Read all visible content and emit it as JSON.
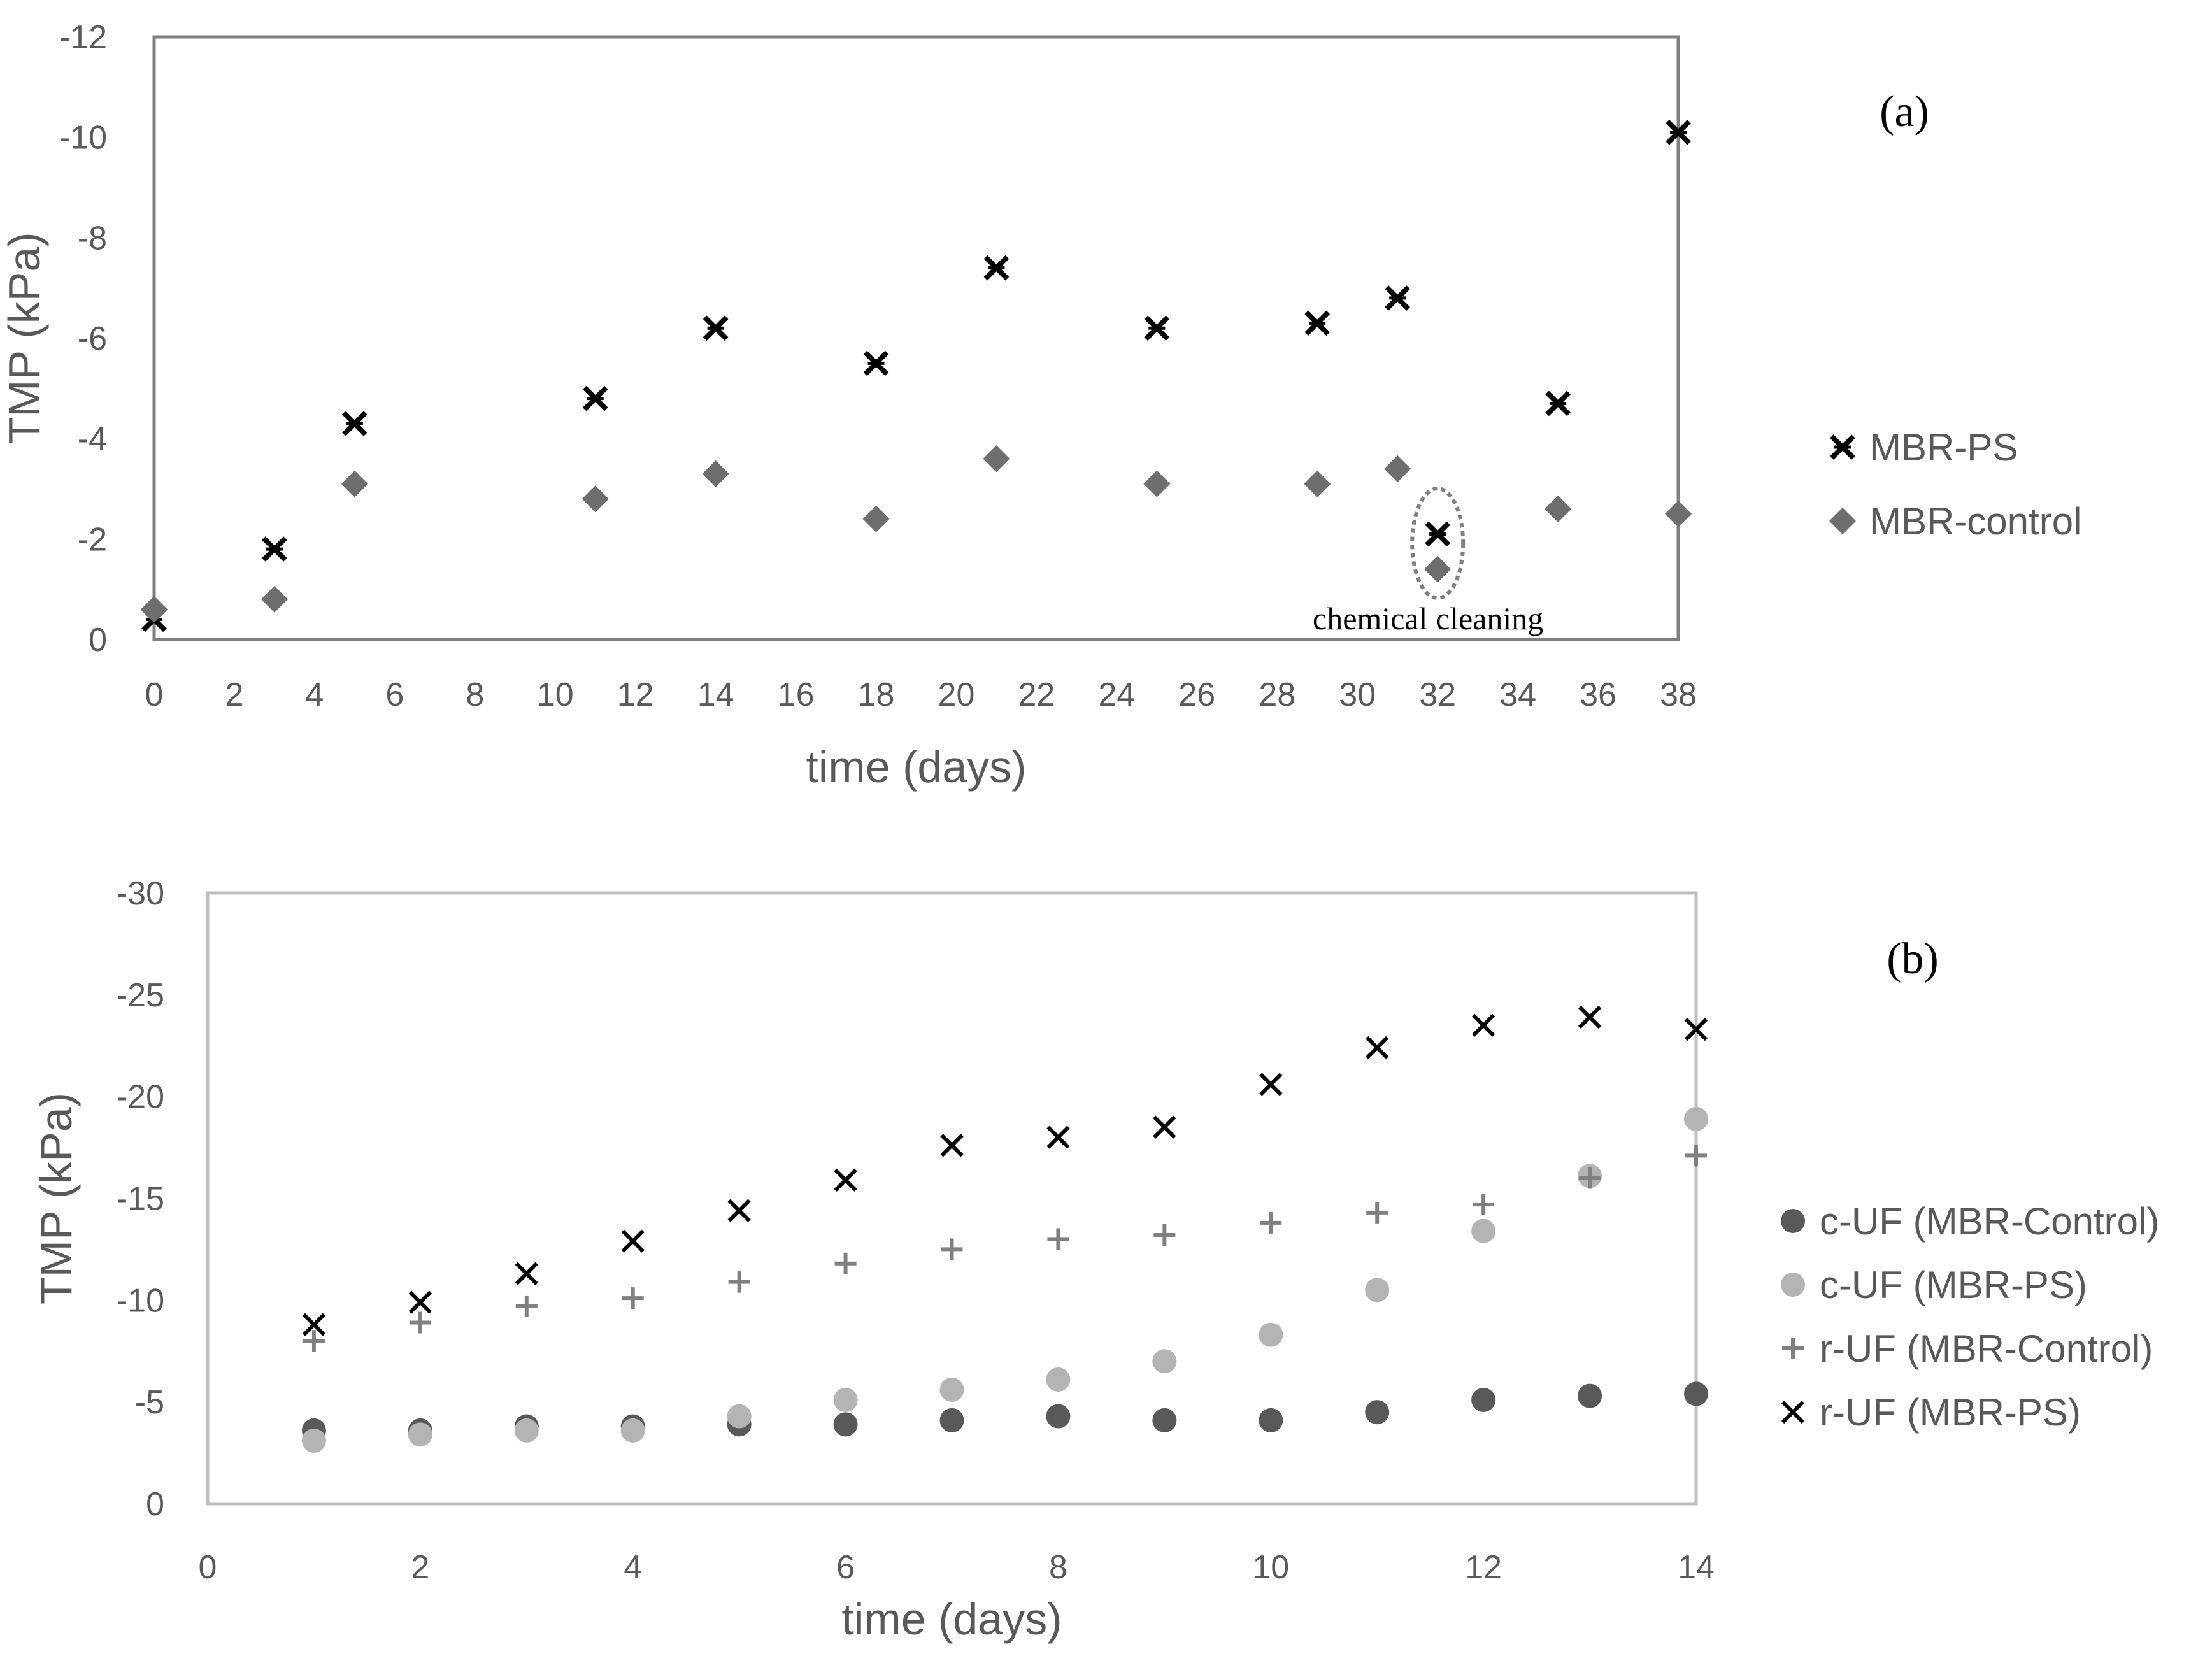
{
  "chart_data": [
    {
      "type": "scatter",
      "panel_label": "(a)",
      "xlabel": "time (days)",
      "ylabel": "TMP (kPa)",
      "xlim": [
        0,
        38
      ],
      "ylim": [
        0,
        -12
      ],
      "xticks": [
        0,
        2,
        4,
        6,
        8,
        10,
        12,
        14,
        16,
        18,
        20,
        22,
        24,
        26,
        28,
        30,
        32,
        34,
        36,
        38
      ],
      "yticks": [
        0,
        -2,
        -4,
        -6,
        -8,
        -10,
        -12
      ],
      "legend_position": "right",
      "series": [
        {
          "name": "MBR-PS",
          "marker": "asterisk-x",
          "color": "#000000",
          "x": [
            0,
            3,
            5,
            11,
            14,
            18,
            21,
            25,
            29,
            31,
            32,
            35,
            38
          ],
          "y": [
            -0.4,
            -1.8,
            -4.3,
            -4.8,
            -6.2,
            -5.5,
            -7.4,
            -6.2,
            -6.3,
            -6.8,
            -2.1,
            -4.7,
            -10.1
          ]
        },
        {
          "name": "MBR-control",
          "marker": "diamond",
          "color": "#6e6e6e",
          "x": [
            0,
            3,
            5,
            11,
            14,
            18,
            21,
            25,
            29,
            31,
            32,
            35,
            38
          ],
          "y": [
            -0.6,
            -0.8,
            -3.1,
            -2.8,
            -3.3,
            -2.4,
            -3.6,
            -3.1,
            -3.1,
            -3.4,
            -1.4,
            -2.6,
            -2.5
          ]
        }
      ],
      "annotation": {
        "text": "chemical cleaning",
        "x": 32
      }
    },
    {
      "type": "scatter",
      "panel_label": "(b)",
      "xlabel": "time (days)",
      "ylabel": "TMP (kPa)",
      "xlim": [
        0,
        14
      ],
      "ylim": [
        0,
        -30
      ],
      "xticks": [
        0,
        2,
        4,
        6,
        8,
        10,
        12,
        14
      ],
      "yticks": [
        0,
        -5,
        -10,
        -15,
        -20,
        -25,
        -30
      ],
      "legend_position": "right",
      "series": [
        {
          "name": "c-UF (MBR-Control)",
          "marker": "circle",
          "color": "#595959",
          "x": [
            1,
            2,
            3,
            4,
            5,
            6,
            7,
            8,
            9,
            10,
            11,
            12,
            13,
            14
          ],
          "y": [
            -3.6,
            -3.6,
            -3.8,
            -3.8,
            -3.9,
            -3.9,
            -4.1,
            -4.3,
            -4.1,
            -4.1,
            -4.5,
            -5.1,
            -5.3,
            -5.4
          ]
        },
        {
          "name": "c-UF (MBR-PS)",
          "marker": "circle",
          "color": "#b4b4b4",
          "x": [
            1,
            2,
            3,
            4,
            5,
            6,
            7,
            8,
            9,
            10,
            11,
            12,
            13,
            14
          ],
          "y": [
            -3.1,
            -3.4,
            -3.6,
            -3.6,
            -4.3,
            -5.1,
            -5.6,
            -6.1,
            -7.0,
            -8.3,
            -10.5,
            -13.4,
            -16.1,
            -18.9
          ]
        },
        {
          "name": "r-UF (MBR-Control)",
          "marker": "plus",
          "color": "#808080",
          "x": [
            1,
            2,
            3,
            4,
            5,
            6,
            7,
            8,
            9,
            10,
            11,
            12,
            13,
            14
          ],
          "y": [
            -8.0,
            -8.9,
            -9.7,
            -10.1,
            -10.9,
            -11.8,
            -12.5,
            -13.0,
            -13.2,
            -13.8,
            -14.3,
            -14.7,
            -16.0,
            -17.1
          ]
        },
        {
          "name": "r-UF (MBR-PS)",
          "marker": "x",
          "color": "#000000",
          "x": [
            1,
            2,
            3,
            4,
            5,
            6,
            7,
            8,
            9,
            10,
            11,
            12,
            13,
            14
          ],
          "y": [
            -8.8,
            -9.9,
            -11.3,
            -12.9,
            -14.4,
            -15.9,
            -17.6,
            -18.0,
            -18.5,
            -20.6,
            -22.4,
            -23.5,
            -23.9,
            -23.3
          ]
        }
      ]
    }
  ]
}
